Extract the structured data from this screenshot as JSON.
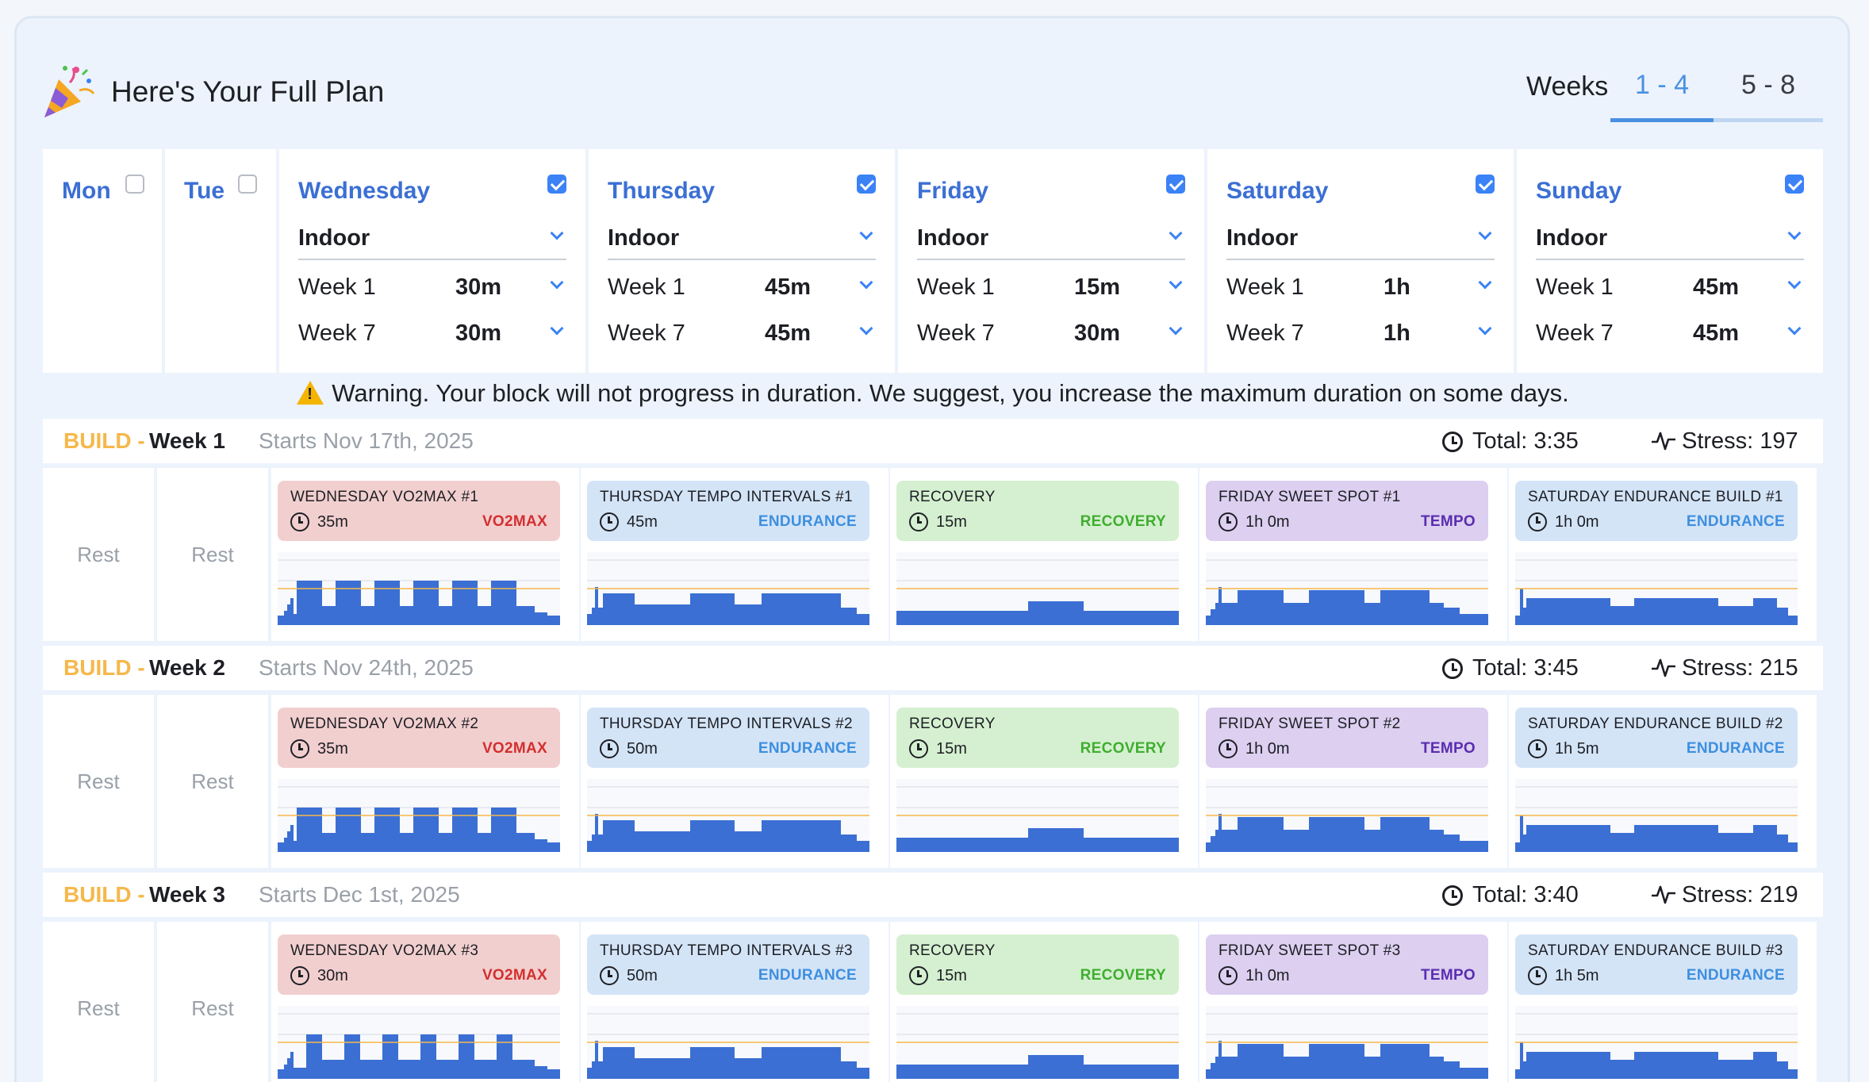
{
  "header": {
    "title": "Here's Your Full Plan",
    "weeks_label": "Weeks",
    "tabs": [
      {
        "label": "1 - 4",
        "active": true
      },
      {
        "label": "5 - 8",
        "active": false
      }
    ]
  },
  "days": [
    {
      "name": "Mon",
      "checked": false
    },
    {
      "name": "Tue",
      "checked": false
    },
    {
      "name": "Wednesday",
      "checked": true,
      "location": "Indoor",
      "rows": [
        {
          "week": "Week 1",
          "dur": "30m"
        },
        {
          "week": "Week 7",
          "dur": "30m"
        }
      ]
    },
    {
      "name": "Thursday",
      "checked": true,
      "location": "Indoor",
      "rows": [
        {
          "week": "Week 1",
          "dur": "45m"
        },
        {
          "week": "Week 7",
          "dur": "45m"
        }
      ]
    },
    {
      "name": "Friday",
      "checked": true,
      "location": "Indoor",
      "rows": [
        {
          "week": "Week 1",
          "dur": "15m"
        },
        {
          "week": "Week 7",
          "dur": "30m"
        }
      ]
    },
    {
      "name": "Saturday",
      "checked": true,
      "location": "Indoor",
      "rows": [
        {
          "week": "Week 1",
          "dur": "1h"
        },
        {
          "week": "Week 7",
          "dur": "1h"
        }
      ]
    },
    {
      "name": "Sunday",
      "checked": true,
      "location": "Indoor",
      "rows": [
        {
          "week": "Week 1",
          "dur": "45m"
        },
        {
          "week": "Week 7",
          "dur": "45m"
        }
      ]
    }
  ],
  "warning": "Warning. Your block will not progress in duration. We suggest, you increase the maximum duration on some days.",
  "rest_label": "Rest",
  "colors": {
    "accent": "#4a90e2",
    "bar": "#3b6fd4",
    "ftp_line": "#f5b84a",
    "phase": "#f5b84a"
  },
  "weeks": [
    {
      "phase": "BUILD",
      "sep": "-",
      "week": "Week 1",
      "starts": "Starts Nov 17th, 2025",
      "total": "Total: 3:35",
      "stress": "Stress: 197",
      "workouts": [
        {
          "name": "WEDNESDAY VO2MAX #1",
          "dur": "35m",
          "type": "VO2MAX",
          "color": "red",
          "profile": "vo2"
        },
        {
          "name": "THURSDAY TEMPO INTERVALS #1",
          "dur": "45m",
          "type": "ENDURANCE",
          "color": "blue",
          "profile": "tempo"
        },
        {
          "name": "RECOVERY",
          "dur": "15m",
          "type": "RECOVERY",
          "color": "green",
          "profile": "recovery"
        },
        {
          "name": "FRIDAY SWEET SPOT #1",
          "dur": "1h 0m",
          "type": "TEMPO",
          "color": "purple",
          "profile": "sweet"
        },
        {
          "name": "SATURDAY ENDURANCE BUILD #1",
          "dur": "1h 0m",
          "type": "ENDURANCE",
          "color": "blue",
          "profile": "endurance"
        }
      ]
    },
    {
      "phase": "BUILD",
      "sep": "-",
      "week": "Week 2",
      "starts": "Starts Nov 24th, 2025",
      "total": "Total: 3:45",
      "stress": "Stress: 215",
      "workouts": [
        {
          "name": "WEDNESDAY VO2MAX #2",
          "dur": "35m",
          "type": "VO2MAX",
          "color": "red",
          "profile": "vo2"
        },
        {
          "name": "THURSDAY TEMPO INTERVALS #2",
          "dur": "50m",
          "type": "ENDURANCE",
          "color": "blue",
          "profile": "tempo"
        },
        {
          "name": "RECOVERY",
          "dur": "15m",
          "type": "RECOVERY",
          "color": "green",
          "profile": "recovery"
        },
        {
          "name": "FRIDAY SWEET SPOT #2",
          "dur": "1h 0m",
          "type": "TEMPO",
          "color": "purple",
          "profile": "sweet"
        },
        {
          "name": "SATURDAY ENDURANCE BUILD #2",
          "dur": "1h 5m",
          "type": "ENDURANCE",
          "color": "blue",
          "profile": "endurance"
        }
      ]
    },
    {
      "phase": "BUILD",
      "sep": "-",
      "week": "Week 3",
      "starts": "Starts Dec 1st, 2025",
      "total": "Total: 3:40",
      "stress": "Stress: 219",
      "workouts": [
        {
          "name": "WEDNESDAY VO2MAX #3",
          "dur": "30m",
          "type": "VO2MAX",
          "color": "red",
          "profile": "vo2b"
        },
        {
          "name": "THURSDAY TEMPO INTERVALS #3",
          "dur": "50m",
          "type": "ENDURANCE",
          "color": "blue",
          "profile": "tempo3"
        },
        {
          "name": "RECOVERY",
          "dur": "15m",
          "type": "RECOVERY",
          "color": "green",
          "profile": "recovery"
        },
        {
          "name": "FRIDAY SWEET SPOT #3",
          "dur": "1h 0m",
          "type": "TEMPO",
          "color": "purple",
          "profile": "sweet3"
        },
        {
          "name": "SATURDAY ENDURANCE BUILD #3",
          "dur": "1h 5m",
          "type": "ENDURANCE",
          "color": "blue",
          "profile": "endurance"
        }
      ]
    }
  ]
}
